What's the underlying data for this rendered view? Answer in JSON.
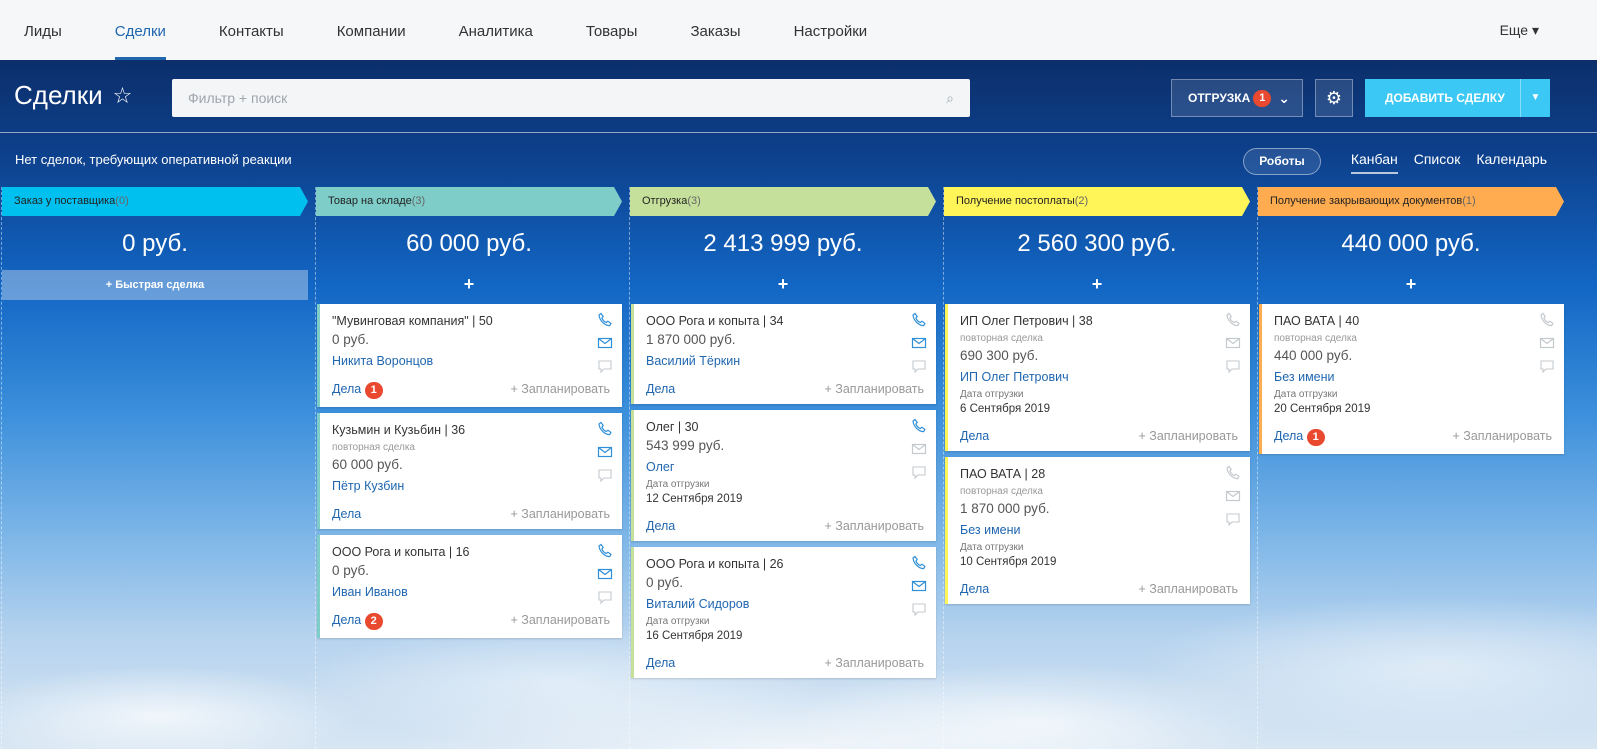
{
  "nav": {
    "items": [
      "Лиды",
      "Сделки",
      "Контакты",
      "Компании",
      "Аналитика",
      "Товары",
      "Заказы",
      "Настройки"
    ],
    "active": 1,
    "more": "Еще"
  },
  "header": {
    "title": "Сделки",
    "search_placeholder": "Фильтр + поиск",
    "stage_button": "ОТГРУЗКА",
    "stage_badge": "1",
    "add_button": "ДОБАВИТЬ СДЕЛКУ"
  },
  "toolbar": {
    "notice": "Нет сделок, требующих оперативной реакции",
    "robots": "Роботы",
    "views": [
      "Канбан",
      "Список",
      "Календарь"
    ],
    "active_view": 0
  },
  "common": {
    "quick_deal": "+ Быстрая сделка",
    "add": "+",
    "deals": "Дела",
    "plan": "+ Запланировать",
    "repeat": "повторная сделка",
    "ship_date": "Дата отгрузки"
  },
  "columns": [
    {
      "title": "Заказ у поставщика",
      "count": "(0)",
      "sum": "0 руб.",
      "color": "#00c0f0",
      "cards": []
    },
    {
      "title": "Товар на складе",
      "count": "(3)",
      "sum": "60 000 руб.",
      "color": "#7fcdc8",
      "cards": [
        {
          "name": "\"Мувинговая компания\" | 50",
          "price": "0 руб.",
          "client": "Никита Воронцов",
          "badge": "1",
          "active": true
        },
        {
          "name": "Кузьмин и Кузьбин | 36",
          "repeat": true,
          "price": "60 000 руб.",
          "client": "Пётр Кузбин",
          "active": true
        },
        {
          "name": "ООО Рога и копыта | 16",
          "price": "0 руб.",
          "client": "Иван Иванов",
          "badge": "2",
          "active": true
        }
      ]
    },
    {
      "title": "Отгрузка",
      "count": "(3)",
      "sum": "2 413 999 руб.",
      "color": "#c5e09b",
      "cards": [
        {
          "name": "ООО Рога и копыта | 34",
          "price": "1 870 000 руб.",
          "client": "Василий Тёркин",
          "active": true
        },
        {
          "name": "Олег | 30",
          "price": "543 999 руб.",
          "client": "Олег",
          "date": "12 Сентября 2019",
          "active": true,
          "mail_grey": true
        },
        {
          "name": "ООО Рога и копыта | 26",
          "price": "0 руб.",
          "client": "Виталий Сидоров",
          "date": "16 Сентября 2019",
          "active": true
        }
      ]
    },
    {
      "title": "Получение постоплаты",
      "count": "(2)",
      "sum": "2 560 300 руб.",
      "color": "#fff559",
      "cards": [
        {
          "name": "ИП Олег Петрович | 38",
          "repeat": true,
          "price": "690 300 руб.",
          "client": "ИП Олег Петрович",
          "date": "6 Сентября 2019",
          "active": false
        },
        {
          "name": "ПАО ВАТА | 28",
          "repeat": true,
          "price": "1 870 000 руб.",
          "client": "Без имени",
          "date": "10 Сентября 2019",
          "active": false
        }
      ]
    },
    {
      "title": "Получение закрывающих документов",
      "count": "(1)",
      "sum": "440 000 руб.",
      "color": "#ffab4f",
      "cards": [
        {
          "name": "ПАО ВАТА | 40",
          "repeat": true,
          "price": "440 000 руб.",
          "client": "Без имени",
          "date": "20 Сентября 2019",
          "badge": "1",
          "active": false
        }
      ]
    }
  ]
}
